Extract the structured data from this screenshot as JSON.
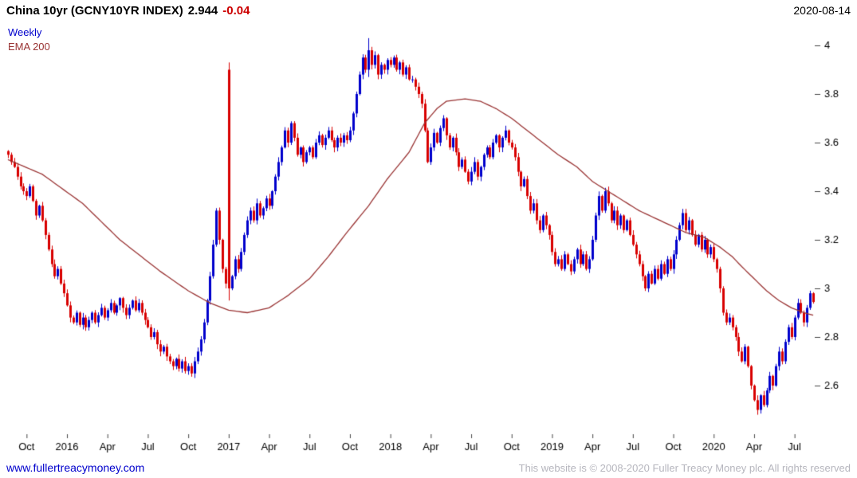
{
  "header": {
    "title": "China 10yr (GCNY10YR INDEX)",
    "last_price": "2.944",
    "change": "-0.04",
    "date": "2020-08-14"
  },
  "legend": {
    "series_label": "Weekly",
    "ema_label": "EMA 200"
  },
  "footer": {
    "website": "www.fullertreacymoney.com",
    "copyright": "This website is © 2008-2020 Fuller Treacy Money plc. All rights reserved"
  },
  "colors": {
    "up_candle": "#0000cc",
    "down_candle": "#d80000",
    "ema_line": "#993333",
    "change_text": "#cc0000",
    "axis_text": "#000000",
    "tick_mark": "#444444",
    "link": "#0000cc",
    "copyright_text": "#b6b6be"
  },
  "chart_data": {
    "type": "candlestick",
    "timeframe": "weekly",
    "title": "China 10yr (GCNY10YR INDEX)",
    "last_close": 2.944,
    "change": -0.04,
    "grid": false,
    "legend_position": "top-left-inside",
    "y_axis": {
      "side": "right",
      "ticks": [
        4,
        3.8,
        3.6,
        3.4,
        3.2,
        3,
        2.8,
        2.6
      ],
      "ylim": [
        2.4,
        4.09
      ]
    },
    "x_axis": {
      "labels": [
        "Oct",
        "2016",
        "Apr",
        "Jul",
        "Oct",
        "2017",
        "Apr",
        "Jul",
        "Oct",
        "2018",
        "Apr",
        "Jul",
        "Oct",
        "2019",
        "Apr",
        "Jul",
        "Oct",
        "2020",
        "Apr",
        "Jul"
      ],
      "label_indices": [
        6,
        19,
        32,
        45,
        58,
        71,
        84,
        97,
        110,
        123,
        136,
        149,
        162,
        175,
        188,
        201,
        214,
        227,
        240,
        253
      ]
    },
    "closes": [
      3.55,
      3.52,
      3.5,
      3.46,
      3.42,
      3.4,
      3.38,
      3.42,
      3.36,
      3.3,
      3.34,
      3.28,
      3.22,
      3.16,
      3.1,
      3.05,
      3.08,
      3.02,
      2.98,
      2.93,
      2.88,
      2.86,
      2.9,
      2.85,
      2.88,
      2.84,
      2.87,
      2.9,
      2.86,
      2.89,
      2.92,
      2.88,
      2.91,
      2.94,
      2.9,
      2.93,
      2.96,
      2.92,
      2.89,
      2.92,
      2.95,
      2.91,
      2.94,
      2.9,
      2.87,
      2.84,
      2.8,
      2.82,
      2.77,
      2.74,
      2.76,
      2.72,
      2.7,
      2.68,
      2.71,
      2.67,
      2.7,
      2.66,
      2.68,
      2.65,
      2.7,
      2.74,
      2.79,
      2.86,
      2.95,
      3.05,
      3.18,
      3.32,
      3.2,
      3.08,
      3.02,
      3.0,
      3.05,
      3.12,
      3.08,
      3.15,
      3.22,
      3.28,
      3.32,
      3.28,
      3.35,
      3.3,
      3.33,
      3.37,
      3.34,
      3.4,
      3.46,
      3.52,
      3.58,
      3.65,
      3.6,
      3.68,
      3.62,
      3.55,
      3.58,
      3.52,
      3.56,
      3.58,
      3.54,
      3.6,
      3.63,
      3.59,
      3.62,
      3.65,
      3.61,
      3.58,
      3.62,
      3.6,
      3.63,
      3.61,
      3.65,
      3.72,
      3.8,
      3.88,
      3.95,
      3.9,
      3.98,
      3.92,
      3.96,
      3.88,
      3.92,
      3.9,
      3.94,
      3.92,
      3.95,
      3.9,
      3.93,
      3.88,
      3.91,
      3.86,
      3.86,
      3.83,
      3.8,
      3.76,
      3.65,
      3.52,
      3.58,
      3.64,
      3.6,
      3.66,
      3.7,
      3.63,
      3.58,
      3.62,
      3.56,
      3.5,
      3.53,
      3.48,
      3.44,
      3.48,
      3.52,
      3.46,
      3.5,
      3.55,
      3.58,
      3.54,
      3.6,
      3.63,
      3.58,
      3.62,
      3.65,
      3.6,
      3.58,
      3.54,
      3.48,
      3.42,
      3.45,
      3.38,
      3.32,
      3.35,
      3.28,
      3.24,
      3.3,
      3.26,
      3.22,
      3.15,
      3.1,
      3.12,
      3.08,
      3.14,
      3.1,
      3.07,
      3.12,
      3.16,
      3.1,
      3.14,
      3.08,
      3.12,
      3.2,
      3.3,
      3.38,
      3.32,
      3.4,
      3.35,
      3.28,
      3.32,
      3.26,
      3.3,
      3.24,
      3.28,
      3.22,
      3.18,
      3.14,
      3.1,
      3.05,
      3.0,
      3.06,
      3.02,
      3.08,
      3.04,
      3.1,
      3.06,
      3.12,
      3.08,
      3.14,
      3.2,
      3.26,
      3.31,
      3.24,
      3.28,
      3.22,
      3.18,
      3.22,
      3.16,
      3.2,
      3.14,
      3.17,
      3.12,
      3.08,
      3.0,
      2.9,
      2.86,
      2.88,
      2.84,
      2.8,
      2.74,
      2.7,
      2.76,
      2.68,
      2.6,
      2.54,
      2.5,
      2.56,
      2.52,
      2.58,
      2.64,
      2.6,
      2.68,
      2.74,
      2.7,
      2.78,
      2.84,
      2.8,
      2.88,
      2.94,
      2.9,
      2.86,
      2.92,
      2.98,
      2.944
    ],
    "overrides": {
      "71": [
        3.9,
        3.93,
        2.95,
        3.0
      ],
      "116": [
        3.9,
        4.03,
        3.87,
        3.98
      ],
      "241": [
        2.54,
        2.56,
        2.48,
        2.5
      ]
    },
    "ema_points": [
      [
        0,
        3.53
      ],
      [
        11,
        3.47
      ],
      [
        24,
        3.35
      ],
      [
        36,
        3.2
      ],
      [
        49,
        3.07
      ],
      [
        58,
        2.99
      ],
      [
        65,
        2.94
      ],
      [
        71,
        2.91
      ],
      [
        77,
        2.9
      ],
      [
        84,
        2.92
      ],
      [
        90,
        2.97
      ],
      [
        97,
        3.04
      ],
      [
        103,
        3.13
      ],
      [
        109,
        3.23
      ],
      [
        116,
        3.34
      ],
      [
        122,
        3.45
      ],
      [
        129,
        3.56
      ],
      [
        134,
        3.68
      ],
      [
        138,
        3.74
      ],
      [
        141,
        3.77
      ],
      [
        147,
        3.78
      ],
      [
        152,
        3.77
      ],
      [
        157,
        3.74
      ],
      [
        162,
        3.7
      ],
      [
        167,
        3.65
      ],
      [
        172,
        3.6
      ],
      [
        177,
        3.55
      ],
      [
        183,
        3.5
      ],
      [
        188,
        3.44
      ],
      [
        193,
        3.4
      ],
      [
        198,
        3.36
      ],
      [
        203,
        3.32
      ],
      [
        208,
        3.29
      ],
      [
        213,
        3.26
      ],
      [
        218,
        3.23
      ],
      [
        224,
        3.21
      ],
      [
        229,
        3.17
      ],
      [
        233,
        3.13
      ],
      [
        236,
        3.09
      ],
      [
        240,
        3.04
      ],
      [
        244,
        2.99
      ],
      [
        248,
        2.95
      ],
      [
        252,
        2.92
      ],
      [
        256,
        2.9
      ],
      [
        259,
        2.89
      ]
    ]
  }
}
